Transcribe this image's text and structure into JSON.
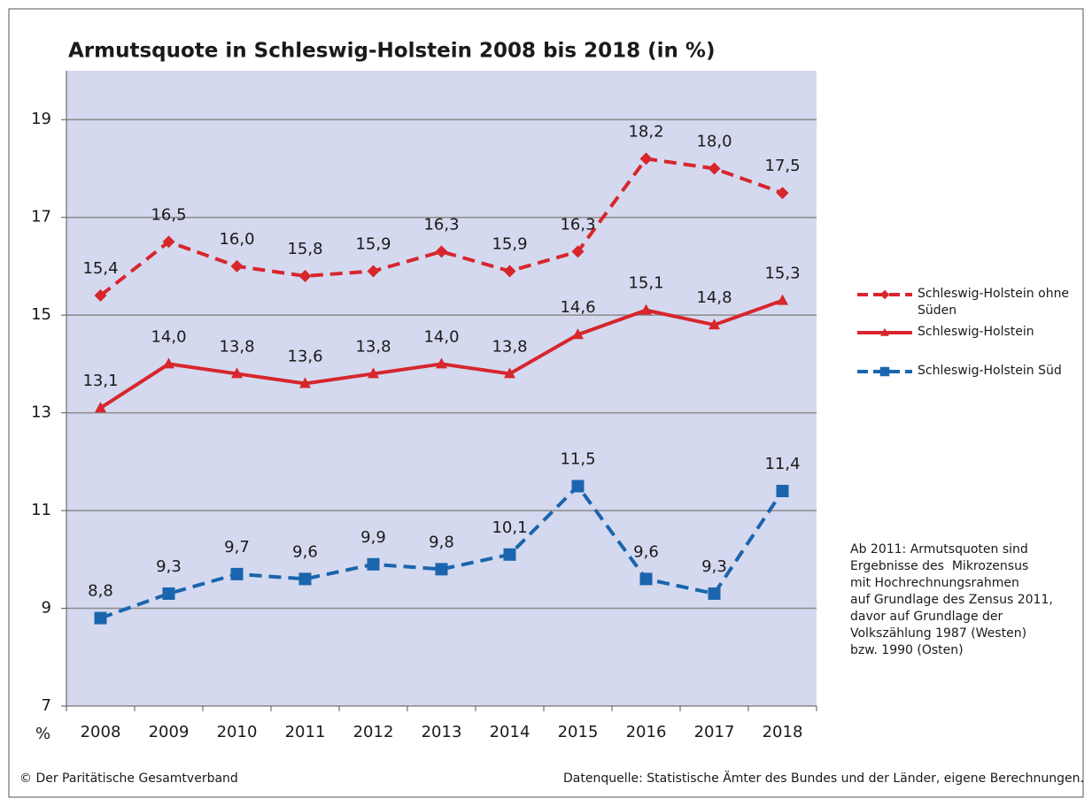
{
  "chart_data": {
    "type": "line",
    "title": "Armutsquote in Schleswig-Holstein 2008 bis 2018 (in %)",
    "ylabel": "%",
    "categories": [
      "2008",
      "2009",
      "2010",
      "2011",
      "2012",
      "2013",
      "2014",
      "2015",
      "2016",
      "2017",
      "2018"
    ],
    "series": [
      {
        "name": "Schleswig-Holstein ohne Süden",
        "color": "#d7262c",
        "dash": true,
        "marker": "diamond",
        "values": [
          15.4,
          16.5,
          16.0,
          15.8,
          15.9,
          16.3,
          15.9,
          16.3,
          18.2,
          18.0,
          17.5
        ],
        "value_labels": [
          "15,4",
          "16,5",
          "16,0",
          "15,8",
          "15,9",
          "16,3",
          "15,9",
          "16,3",
          "18,2",
          "18,0",
          "17,5"
        ]
      },
      {
        "name": "Schleswig-Holstein",
        "color": "#d7262c",
        "dash": false,
        "marker": "triangle",
        "values": [
          13.1,
          14.0,
          13.8,
          13.6,
          13.8,
          14.0,
          13.8,
          14.6,
          15.1,
          14.8,
          15.3
        ],
        "value_labels": [
          "13,1",
          "14,0",
          "13,8",
          "13,6",
          "13,8",
          "14,0",
          "13,8",
          "14,6",
          "15,1",
          "14,8",
          "15,3"
        ]
      },
      {
        "name": "Schleswig-Holstein Süd",
        "color": "#1a65ad",
        "dash": true,
        "marker": "square",
        "values": [
          8.8,
          9.3,
          9.7,
          9.6,
          9.9,
          9.8,
          10.1,
          11.5,
          9.6,
          9.3,
          11.4
        ],
        "value_labels": [
          "8,8",
          "9,3",
          "9,7",
          "9,6",
          "9,9",
          "9,8",
          "10,1",
          "11,5",
          "9,6",
          "9,3",
          "11,4"
        ]
      }
    ],
    "ylim": [
      7,
      20
    ],
    "yticks": [
      7,
      9,
      11,
      13,
      15,
      17,
      19
    ],
    "grid": true,
    "legend": "right",
    "note_lines": [
      "Ab 2011: Armutsquoten sind",
      "Ergebnisse des  Mikrozensus",
      "mit Hochrechnungsrahmen",
      "auf Grundlage des Zensus 2011,",
      "davor auf Grundlage der",
      "Volkszählung 1987 (Westen)",
      "bzw. 1990 (Osten)"
    ],
    "copyright": "© Der Paritätische Gesamtverband",
    "source": "Datenquelle: Statistische Ämter des Bundes und der Länder, eigene Berechnungen."
  }
}
